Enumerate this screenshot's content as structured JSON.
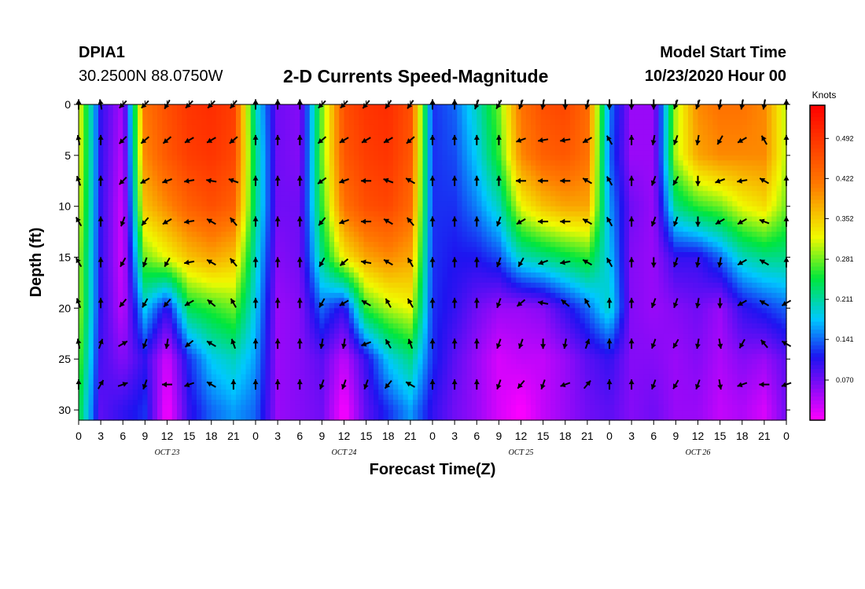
{
  "header": {
    "station_id": "DPIA1",
    "coordinates": "30.2500N 88.0750W",
    "title": "2-D Currents Speed-Magnitude",
    "start_label": "Model Start Time",
    "start_value": "10/23/2020 Hour 00"
  },
  "colorbar": {
    "unit": "Knots",
    "ticks": [
      "0.492",
      "0.422",
      "0.352",
      "0.281",
      "0.211",
      "0.141",
      "0.070"
    ],
    "tick_values": [
      0.492,
      0.422,
      0.352,
      0.281,
      0.211,
      0.141,
      0.07
    ],
    "range": [
      0.0,
      0.55
    ]
  },
  "chart_data": {
    "type": "heatmap",
    "title": "2-D Currents Speed-Magnitude",
    "xlabel": "Forecast Time(Z)",
    "ylabel": "Depth (ft)",
    "x_tick_labels": [
      "0",
      "3",
      "6",
      "9",
      "12",
      "15",
      "18",
      "21",
      "0",
      "3",
      "6",
      "9",
      "12",
      "15",
      "18",
      "21",
      "0",
      "3",
      "6",
      "9",
      "12",
      "15",
      "18",
      "21",
      "0",
      "3",
      "6",
      "9",
      "12",
      "15",
      "18",
      "21",
      "0"
    ],
    "x_range_hours": [
      0,
      96
    ],
    "date_labels": [
      "OCT 23",
      "OCT 24",
      "OCT 25",
      "OCT 26"
    ],
    "y_tick_labels": [
      "0",
      "5",
      "10",
      "15",
      "20",
      "25",
      "30"
    ],
    "y_ticks": [
      0,
      5,
      10,
      15,
      20,
      25,
      30
    ],
    "ylim": [
      31,
      0
    ],
    "vector_depths_ft": [
      0,
      3.5,
      7.5,
      11.5,
      15.5,
      19.5,
      23.5,
      27.5
    ],
    "vector_hours": [
      0,
      3,
      6,
      9,
      12,
      15,
      18,
      21,
      24,
      27,
      30,
      33,
      36,
      39,
      42,
      45,
      48,
      51,
      54,
      57,
      60,
      63,
      66,
      69,
      72,
      75,
      78,
      81,
      84,
      87,
      90,
      93,
      96
    ],
    "speed_grid": {
      "units": "knots",
      "hours": [
        0,
        3,
        6,
        9,
        12,
        15,
        18,
        21,
        24,
        27,
        30,
        33,
        36,
        39,
        42,
        45,
        48,
        51,
        54,
        57,
        60,
        63,
        66,
        69,
        72,
        75,
        78,
        81,
        84,
        87,
        90,
        93,
        96
      ],
      "depths": [
        0,
        5,
        10,
        15,
        20,
        25,
        30
      ],
      "values": [
        [
          0.33,
          0.1,
          0.04,
          0.42,
          0.46,
          0.49,
          0.5,
          0.48,
          0.2,
          0.07,
          0.06,
          0.28,
          0.46,
          0.49,
          0.5,
          0.46,
          0.12,
          0.14,
          0.2,
          0.28,
          0.42,
          0.46,
          0.47,
          0.43,
          0.15,
          0.05,
          0.05,
          0.3,
          0.4,
          0.42,
          0.42,
          0.4,
          0.3
        ],
        [
          0.33,
          0.1,
          0.03,
          0.4,
          0.45,
          0.48,
          0.49,
          0.47,
          0.22,
          0.07,
          0.06,
          0.28,
          0.45,
          0.48,
          0.49,
          0.45,
          0.12,
          0.13,
          0.18,
          0.26,
          0.4,
          0.44,
          0.45,
          0.42,
          0.14,
          0.05,
          0.05,
          0.3,
          0.38,
          0.4,
          0.4,
          0.4,
          0.3
        ],
        [
          0.32,
          0.1,
          0.02,
          0.36,
          0.4,
          0.44,
          0.46,
          0.44,
          0.22,
          0.07,
          0.07,
          0.26,
          0.42,
          0.46,
          0.47,
          0.43,
          0.12,
          0.12,
          0.15,
          0.2,
          0.32,
          0.36,
          0.38,
          0.38,
          0.16,
          0.07,
          0.05,
          0.22,
          0.26,
          0.28,
          0.32,
          0.34,
          0.28
        ],
        [
          0.3,
          0.1,
          0.02,
          0.28,
          0.32,
          0.36,
          0.38,
          0.36,
          0.2,
          0.06,
          0.07,
          0.22,
          0.33,
          0.38,
          0.4,
          0.38,
          0.12,
          0.11,
          0.11,
          0.13,
          0.2,
          0.22,
          0.24,
          0.26,
          0.18,
          0.06,
          0.05,
          0.1,
          0.1,
          0.14,
          0.2,
          0.22,
          0.22
        ],
        [
          0.3,
          0.1,
          0.03,
          0.18,
          0.1,
          0.24,
          0.26,
          0.28,
          0.18,
          0.05,
          0.06,
          0.14,
          0.1,
          0.26,
          0.3,
          0.32,
          0.12,
          0.1,
          0.07,
          0.05,
          0.05,
          0.06,
          0.1,
          0.14,
          0.2,
          0.06,
          0.05,
          0.06,
          0.07,
          0.05,
          0.1,
          0.12,
          0.14
        ],
        [
          0.28,
          0.09,
          0.06,
          0.1,
          0.02,
          0.12,
          0.18,
          0.2,
          0.16,
          0.05,
          0.06,
          0.08,
          0.03,
          0.1,
          0.18,
          0.22,
          0.12,
          0.08,
          0.05,
          0.02,
          0.03,
          0.03,
          0.05,
          0.08,
          0.1,
          0.06,
          0.06,
          0.05,
          0.06,
          0.04,
          0.06,
          0.05,
          0.08
        ],
        [
          0.25,
          0.08,
          0.1,
          0.12,
          0.0,
          0.1,
          0.14,
          0.16,
          0.14,
          0.05,
          0.06,
          0.07,
          0.0,
          0.08,
          0.12,
          0.16,
          0.1,
          0.07,
          0.05,
          0.02,
          0.0,
          0.03,
          0.05,
          0.07,
          0.08,
          0.06,
          0.07,
          0.05,
          0.05,
          0.03,
          0.04,
          0.02,
          0.07
        ]
      ]
    },
    "vector_grid": {
      "units": "direction_degrees_compass_from_north",
      "directions": [
        [
          0,
          350,
          225,
          225,
          210,
          225,
          225,
          220,
          0,
          0,
          0,
          225,
          225,
          220,
          215,
          215,
          0,
          0,
          200,
          210,
          200,
          190,
          180,
          195,
          180,
          180,
          180,
          200,
          200,
          190,
          190,
          190,
          0
        ],
        [
          350,
          0,
          225,
          230,
          230,
          240,
          240,
          230,
          0,
          0,
          0,
          230,
          240,
          240,
          240,
          230,
          0,
          0,
          0,
          0,
          250,
          260,
          260,
          240,
          330,
          0,
          190,
          200,
          190,
          210,
          240,
          330,
          0
        ],
        [
          340,
          0,
          225,
          240,
          250,
          260,
          280,
          290,
          0,
          0,
          0,
          235,
          250,
          270,
          290,
          300,
          0,
          0,
          0,
          0,
          270,
          270,
          270,
          300,
          330,
          0,
          200,
          210,
          180,
          250,
          260,
          300,
          0
        ],
        [
          330,
          0,
          200,
          220,
          240,
          260,
          300,
          320,
          0,
          0,
          0,
          220,
          250,
          270,
          300,
          320,
          0,
          0,
          0,
          200,
          240,
          270,
          270,
          300,
          330,
          0,
          200,
          200,
          180,
          240,
          240,
          290,
          0
        ],
        [
          330,
          0,
          210,
          200,
          210,
          260,
          300,
          320,
          0,
          0,
          0,
          210,
          230,
          280,
          300,
          330,
          0,
          0,
          0,
          200,
          210,
          250,
          260,
          300,
          330,
          0,
          180,
          200,
          190,
          190,
          240,
          300,
          0
        ],
        [
          340,
          0,
          220,
          210,
          220,
          240,
          310,
          330,
          0,
          0,
          0,
          210,
          240,
          300,
          330,
          330,
          0,
          0,
          0,
          200,
          230,
          280,
          310,
          330,
          0,
          0,
          200,
          200,
          190,
          180,
          240,
          300,
          240
        ],
        [
          350,
          20,
          60,
          200,
          190,
          230,
          300,
          340,
          0,
          0,
          0,
          190,
          190,
          250,
          330,
          340,
          0,
          0,
          0,
          200,
          200,
          180,
          190,
          20,
          0,
          0,
          200,
          210,
          190,
          170,
          210,
          320,
          300
        ],
        [
          0,
          30,
          70,
          200,
          270,
          250,
          300,
          0,
          0,
          0,
          0,
          200,
          200,
          200,
          220,
          300,
          0,
          0,
          0,
          200,
          220,
          200,
          250,
          40,
          0,
          0,
          200,
          210,
          200,
          170,
          250,
          270,
          250
        ]
      ]
    }
  }
}
